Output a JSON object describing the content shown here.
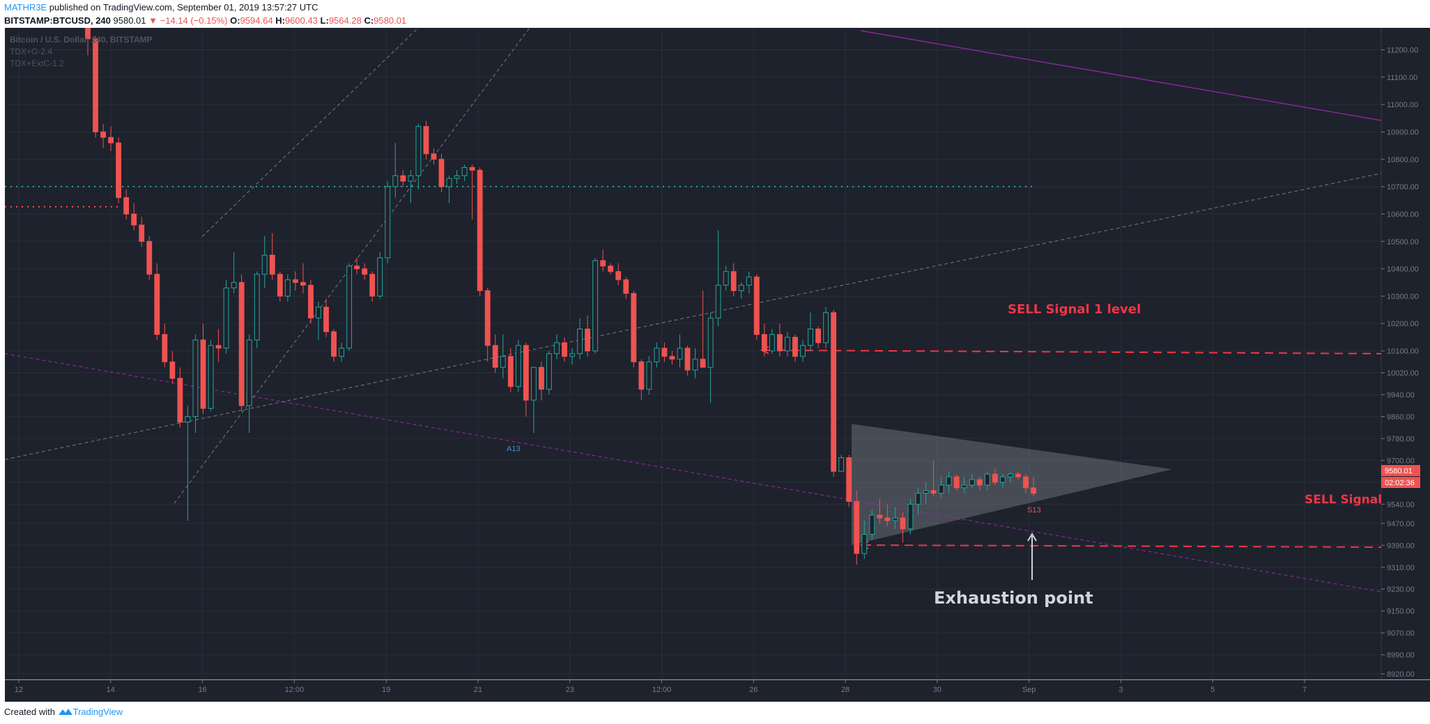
{
  "header": {
    "author": "MATHR3E",
    "published_text": "published on TradingView.com, September 01, 2019 13:57:27 UTC",
    "symbol": "BITSTAMP:BTCUSD, 240",
    "last_price": "9580.01",
    "change": "−14.14 (−0.15%)",
    "open_label": "O:",
    "open": "9594.64",
    "high_label": "H:",
    "high": "9600.43",
    "low_label": "L:",
    "low": "9564.28",
    "close_label": "C:",
    "close": "9580.01"
  },
  "legend": {
    "series_title": "Bitcoin / U.S. Dollar, 240, BITSTAMP",
    "indicator_1": "TDX+G-2.4",
    "indicator_2": "TDX+ExtC-1.2"
  },
  "annotations": {
    "sell_signal_1": "SELL Signal 1 level",
    "sell_signal": "SELL Signal",
    "exhaustion": "Exhaustion point",
    "a13": "A13",
    "s13": "S13"
  },
  "price_tags": {
    "last": "9580.01",
    "countdown": "02:02:36"
  },
  "footer": {
    "created_with": "Created with",
    "brand": "TradingView"
  },
  "colors": {
    "background": "#1e222d",
    "up": "#26a69a",
    "down": "#ef5350",
    "annotation_red": "#f23645",
    "grid": "#2a2e39",
    "axis_text": "#787b86"
  },
  "chart_data": {
    "type": "candlestick",
    "symbol": "BITSTAMP:BTCUSD",
    "timeframe": "240",
    "x_ticks": [
      "12",
      "14",
      "16",
      "12:00",
      "19",
      "21",
      "23",
      "12:00",
      "26",
      "28",
      "30",
      "Sep",
      "3",
      "5",
      "7"
    ],
    "y_ticks": [
      11200,
      11100,
      11000,
      10900,
      10800,
      10700,
      10600,
      10500,
      10400,
      10300,
      10200,
      10100,
      10020,
      9940,
      9860,
      9780,
      9700,
      9620,
      9540,
      9470,
      9390,
      9310,
      9230,
      9150,
      9070,
      8990,
      8920
    ],
    "y_range": [
      8900,
      11280
    ],
    "candles": [
      [
        11300,
        11310,
        11180,
        11240
      ],
      [
        11240,
        11250,
        10880,
        10900
      ],
      [
        10900,
        10930,
        10840,
        10880
      ],
      [
        10880,
        10920,
        10830,
        10860
      ],
      [
        10860,
        10880,
        10640,
        10660
      ],
      [
        10660,
        10690,
        10580,
        10600
      ],
      [
        10600,
        10640,
        10540,
        10560
      ],
      [
        10560,
        10590,
        10480,
        10500
      ],
      [
        10500,
        10520,
        10360,
        10380
      ],
      [
        10380,
        10420,
        10140,
        10160
      ],
      [
        10160,
        10200,
        10040,
        10060
      ],
      [
        10060,
        10100,
        9980,
        10000
      ],
      [
        10000,
        10040,
        9820,
        9840
      ],
      [
        9840,
        9900,
        9480,
        9860
      ],
      [
        9860,
        10160,
        9800,
        10140
      ],
      [
        10140,
        10200,
        9870,
        9890
      ],
      [
        9890,
        10140,
        9880,
        10120
      ],
      [
        10120,
        10180,
        10060,
        10110
      ],
      [
        10110,
        10360,
        10090,
        10330
      ],
      [
        10330,
        10460,
        10310,
        10350
      ],
      [
        10350,
        10380,
        9880,
        9900
      ],
      [
        9900,
        10160,
        9800,
        10140
      ],
      [
        10140,
        10390,
        10110,
        10380
      ],
      [
        10380,
        10520,
        10330,
        10450
      ],
      [
        10450,
        10530,
        10360,
        10380
      ],
      [
        10380,
        10390,
        10280,
        10300
      ],
      [
        10300,
        10380,
        10280,
        10360
      ],
      [
        10360,
        10390,
        10320,
        10350
      ],
      [
        10350,
        10420,
        10310,
        10340
      ],
      [
        10340,
        10360,
        10200,
        10220
      ],
      [
        10220,
        10280,
        10140,
        10260
      ],
      [
        10260,
        10290,
        10150,
        10170
      ],
      [
        10170,
        10180,
        10060,
        10080
      ],
      [
        10080,
        10130,
        10060,
        10110
      ],
      [
        10110,
        10420,
        10100,
        10410
      ],
      [
        10410,
        10440,
        10380,
        10400
      ],
      [
        10400,
        10420,
        10360,
        10380
      ],
      [
        10380,
        10390,
        10280,
        10300
      ],
      [
        10300,
        10460,
        10290,
        10440
      ],
      [
        10440,
        10720,
        10420,
        10700
      ],
      [
        10700,
        10860,
        10660,
        10740
      ],
      [
        10740,
        10760,
        10700,
        10720
      ],
      [
        10720,
        10760,
        10640,
        10740
      ],
      [
        10740,
        10930,
        10690,
        10920
      ],
      [
        10920,
        10940,
        10800,
        10820
      ],
      [
        10820,
        10840,
        10780,
        10800
      ],
      [
        10800,
        10820,
        10680,
        10700
      ],
      [
        10700,
        10740,
        10640,
        10730
      ],
      [
        10730,
        10760,
        10710,
        10740
      ],
      [
        10740,
        10780,
        10720,
        10770
      ],
      [
        10770,
        10780,
        10580,
        10760
      ],
      [
        10760,
        10770,
        10300,
        10320
      ],
      [
        10320,
        10330,
        10060,
        10120
      ],
      [
        10120,
        10160,
        10020,
        10040
      ],
      [
        10040,
        10160,
        10000,
        10080
      ],
      [
        10080,
        10110,
        9950,
        9970
      ],
      [
        9970,
        10140,
        9950,
        10120
      ],
      [
        10120,
        10130,
        9860,
        9920
      ],
      [
        9920,
        10020,
        9800,
        10040
      ],
      [
        10040,
        10060,
        9920,
        9960
      ],
      [
        9960,
        10100,
        9940,
        10090
      ],
      [
        10090,
        10160,
        10070,
        10130
      ],
      [
        10130,
        10150,
        10060,
        10080
      ],
      [
        10080,
        10110,
        10050,
        10090
      ],
      [
        10090,
        10220,
        10070,
        10180
      ],
      [
        10180,
        10230,
        10080,
        10100
      ],
      [
        10100,
        10440,
        10090,
        10430
      ],
      [
        10430,
        10470,
        10390,
        10410
      ],
      [
        10410,
        10420,
        10380,
        10390
      ],
      [
        10390,
        10420,
        10340,
        10360
      ],
      [
        10360,
        10370,
        10290,
        10310
      ],
      [
        10310,
        10320,
        10040,
        10060
      ],
      [
        10060,
        10070,
        9920,
        9960
      ],
      [
        9960,
        10080,
        9940,
        10060
      ],
      [
        10060,
        10130,
        10040,
        10110
      ],
      [
        10110,
        10130,
        10060,
        10080
      ],
      [
        10080,
        10100,
        10050,
        10070
      ],
      [
        10070,
        10160,
        10040,
        10110
      ],
      [
        10110,
        10120,
        10010,
        10030
      ],
      [
        10030,
        10110,
        10000,
        10070
      ],
      [
        10070,
        10320,
        10050,
        10040
      ],
      [
        10040,
        10240,
        9910,
        10220
      ],
      [
        10220,
        10540,
        10190,
        10340
      ],
      [
        10340,
        10410,
        10320,
        10390
      ],
      [
        10390,
        10420,
        10300,
        10320
      ],
      [
        10320,
        10350,
        10290,
        10340
      ],
      [
        10340,
        10390,
        10310,
        10370
      ],
      [
        10370,
        10380,
        10140,
        10160
      ],
      [
        10160,
        10200,
        10080,
        10100
      ],
      [
        10100,
        10180,
        10090,
        10160
      ],
      [
        10160,
        10200,
        10080,
        10100
      ],
      [
        10100,
        10170,
        10080,
        10150
      ],
      [
        10150,
        10160,
        10060,
        10080
      ],
      [
        10080,
        10140,
        10060,
        10120
      ],
      [
        10120,
        10240,
        10100,
        10180
      ],
      [
        10180,
        10190,
        10110,
        10130
      ],
      [
        10130,
        10260,
        10110,
        10240
      ],
      [
        10240,
        10250,
        9640,
        9660
      ],
      [
        9660,
        9720,
        9680,
        9710
      ],
      [
        9710,
        9720,
        9530,
        9550
      ],
      [
        9550,
        9590,
        9320,
        9360
      ],
      [
        9360,
        9480,
        9340,
        9430
      ],
      [
        9430,
        9520,
        9410,
        9500
      ],
      [
        9500,
        9560,
        9470,
        9490
      ],
      [
        9490,
        9540,
        9460,
        9480
      ],
      [
        9480,
        9530,
        9450,
        9490
      ],
      [
        9490,
        9510,
        9400,
        9450
      ],
      [
        9450,
        9560,
        9430,
        9540
      ],
      [
        9540,
        9600,
        9500,
        9580
      ],
      [
        9580,
        9620,
        9540,
        9590
      ],
      [
        9590,
        9700,
        9570,
        9580
      ],
      [
        9580,
        9640,
        9560,
        9610
      ],
      [
        9610,
        9660,
        9580,
        9640
      ],
      [
        9640,
        9650,
        9590,
        9600
      ],
      [
        9600,
        9640,
        9580,
        9610
      ],
      [
        9610,
        9650,
        9600,
        9630
      ],
      [
        9630,
        9640,
        9590,
        9610
      ],
      [
        9610,
        9660,
        9590,
        9650
      ],
      [
        9650,
        9670,
        9610,
        9620
      ],
      [
        9620,
        9650,
        9600,
        9640
      ],
      [
        9640,
        9660,
        9620,
        9650
      ],
      [
        9650,
        9660,
        9630,
        9640
      ],
      [
        9640,
        9650,
        9580,
        9600
      ],
      [
        9600,
        9640,
        9570,
        9580
      ]
    ]
  }
}
